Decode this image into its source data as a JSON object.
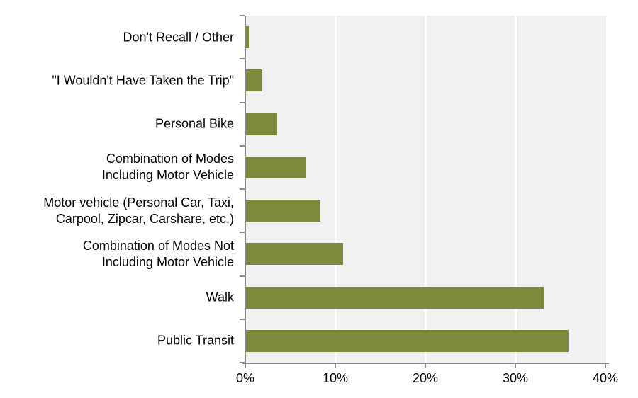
{
  "chart_data": {
    "type": "bar",
    "orientation": "horizontal",
    "title": "",
    "xlabel": "",
    "ylabel": "",
    "categories": [
      "Don't Recall / Other",
      "\"I Wouldn't Have Taken the Trip\"",
      "Personal Bike",
      "Combination of Modes Including Motor Vehicle",
      "Motor vehicle (Personal Car, Taxi, Carpool, Zipcar, Carshare, etc.)",
      "Combination of Modes Not Including Motor Vehicle",
      "Walk",
      "Public Transit"
    ],
    "category_display_lines": [
      [
        "Don't Recall / Other"
      ],
      [
        "\"I Wouldn't Have Taken the Trip\""
      ],
      [
        "Personal Bike"
      ],
      [
        "Combination of Modes",
        "Including Motor Vehicle"
      ],
      [
        "Motor vehicle (Personal Car, Taxi,",
        "Carpool, Zipcar, Carshare, etc.)"
      ],
      [
        "Combination of Modes Not",
        "Including Motor Vehicle"
      ],
      [
        "Walk"
      ],
      [
        "Public Transit"
      ]
    ],
    "values": [
      0.3,
      1.8,
      3.5,
      6.7,
      8.3,
      10.8,
      33.1,
      35.8
    ],
    "value_unit": "%",
    "xlim": [
      0,
      40
    ],
    "x_tick_values": [
      0,
      10,
      20,
      30,
      40
    ],
    "x_tick_labels": [
      "0%",
      "10%",
      "20%",
      "30%",
      "40%"
    ],
    "grid": "vertical gridlines at major x ticks",
    "legend": "none",
    "colors": {
      "bar": "#7D8A3B",
      "plot_background": "#F1F1F1",
      "gridline": "#FFFFFF",
      "axis": "#898989",
      "text": "#000000",
      "page_background": "#FFFFFF"
    }
  }
}
